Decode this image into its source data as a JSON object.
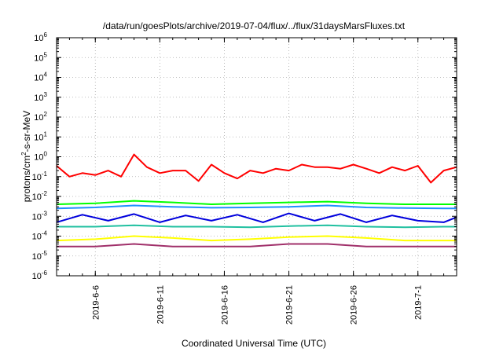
{
  "chart_data": {
    "type": "line",
    "title": "/data/run/goesPlots/archive/2019-07-04/flux/../flux/31daysMarsFluxes.txt",
    "xlabel": "Coordinated Universal Time (UTC)",
    "ylabel": {
      "prefix": "protons/cm",
      "sup": "2",
      "suffix": "-s-sr-MeV"
    },
    "y_scale": "log",
    "ylim_exp": [
      -6,
      6
    ],
    "xlim": [
      "2019-06-03",
      "2019-07-04"
    ],
    "x_ticks": [
      "2019-6-6",
      "2019-6-11",
      "2019-6-16",
      "2019-6-21",
      "2019-6-26",
      "2019-7-1"
    ],
    "x_tick_dates": [
      "2019-06-06",
      "2019-06-11",
      "2019-06-16",
      "2019-06-21",
      "2019-06-26",
      "2019-07-01"
    ],
    "y_tick_exponents": [
      "-6",
      "-5",
      "-4",
      "-3",
      "-2",
      "-1",
      "0",
      "1",
      "2",
      "3",
      "4",
      "5",
      "6"
    ],
    "y_tick_base": "10",
    "grid": true,
    "series": [
      {
        "color": "#ff0000",
        "x": [
          "2019-06-03",
          "2019-06-04",
          "2019-06-05",
          "2019-06-06",
          "2019-06-07",
          "2019-06-08",
          "2019-06-09",
          "2019-06-10",
          "2019-06-11",
          "2019-06-12",
          "2019-06-13",
          "2019-06-14",
          "2019-06-15",
          "2019-06-16",
          "2019-06-17",
          "2019-06-18",
          "2019-06-19",
          "2019-06-20",
          "2019-06-21",
          "2019-06-22",
          "2019-06-23",
          "2019-06-24",
          "2019-06-25",
          "2019-06-26",
          "2019-06-27",
          "2019-06-28",
          "2019-06-29",
          "2019-06-30",
          "2019-07-01",
          "2019-07-02",
          "2019-07-03",
          "2019-07-04"
        ],
        "values": [
          0.35,
          0.1,
          0.15,
          0.12,
          0.2,
          0.1,
          1.3,
          0.3,
          0.15,
          0.2,
          0.2,
          0.06,
          0.4,
          0.15,
          0.08,
          0.2,
          0.15,
          0.25,
          0.2,
          0.4,
          0.3,
          0.3,
          0.25,
          0.4,
          0.25,
          0.15,
          0.3,
          0.2,
          0.35,
          0.05,
          0.2,
          0.3
        ]
      },
      {
        "color": "#00ff00",
        "x": [
          "2019-06-03",
          "2019-06-06",
          "2019-06-09",
          "2019-06-12",
          "2019-06-15",
          "2019-06-18",
          "2019-06-21",
          "2019-06-24",
          "2019-06-27",
          "2019-06-30",
          "2019-07-03",
          "2019-07-04"
        ],
        "values": [
          0.004,
          0.0045,
          0.006,
          0.005,
          0.004,
          0.0045,
          0.005,
          0.0055,
          0.0045,
          0.004,
          0.004,
          0.004
        ]
      },
      {
        "color": "#1e90ff",
        "x": [
          "2019-06-03",
          "2019-06-06",
          "2019-06-09",
          "2019-06-12",
          "2019-06-15",
          "2019-06-18",
          "2019-06-21",
          "2019-06-24",
          "2019-06-27",
          "2019-06-30",
          "2019-07-03",
          "2019-07-04"
        ],
        "values": [
          0.0025,
          0.0028,
          0.0035,
          0.003,
          0.0027,
          0.0028,
          0.003,
          0.0035,
          0.0028,
          0.0026,
          0.0025,
          0.0025
        ]
      },
      {
        "color": "#0000dd",
        "x": [
          "2019-06-03",
          "2019-06-05",
          "2019-06-07",
          "2019-06-09",
          "2019-06-11",
          "2019-06-13",
          "2019-06-15",
          "2019-06-17",
          "2019-06-19",
          "2019-06-21",
          "2019-06-23",
          "2019-06-25",
          "2019-06-27",
          "2019-06-29",
          "2019-07-01",
          "2019-07-03",
          "2019-07-04"
        ],
        "values": [
          0.0005,
          0.0012,
          0.0006,
          0.0013,
          0.0005,
          0.0011,
          0.0006,
          0.0012,
          0.0005,
          0.0014,
          0.0006,
          0.0013,
          0.0005,
          0.0011,
          0.0006,
          0.0005,
          0.0009
        ]
      },
      {
        "color": "#20c0a0",
        "x": [
          "2019-06-03",
          "2019-06-06",
          "2019-06-09",
          "2019-06-12",
          "2019-06-15",
          "2019-06-18",
          "2019-06-21",
          "2019-06-24",
          "2019-06-27",
          "2019-06-30",
          "2019-07-03",
          "2019-07-04"
        ],
        "values": [
          0.0003,
          0.0003,
          0.00035,
          0.0003,
          0.0003,
          0.00028,
          0.00032,
          0.00035,
          0.0003,
          0.00028,
          0.0003,
          0.0003
        ]
      },
      {
        "color": "#ffff00",
        "x": [
          "2019-06-03",
          "2019-06-06",
          "2019-06-09",
          "2019-06-12",
          "2019-06-15",
          "2019-06-18",
          "2019-06-21",
          "2019-06-24",
          "2019-06-27",
          "2019-06-30",
          "2019-07-03",
          "2019-07-04"
        ],
        "values": [
          6e-05,
          7e-05,
          0.0001,
          8e-05,
          6e-05,
          7e-05,
          9e-05,
          0.0001,
          8e-05,
          6e-05,
          6e-05,
          6e-05
        ]
      },
      {
        "color": "#a0306a",
        "x": [
          "2019-06-03",
          "2019-06-06",
          "2019-06-09",
          "2019-06-12",
          "2019-06-15",
          "2019-06-18",
          "2019-06-21",
          "2019-06-24",
          "2019-06-27",
          "2019-06-30",
          "2019-07-03",
          "2019-07-04"
        ],
        "values": [
          3e-05,
          3e-05,
          4e-05,
          3e-05,
          3e-05,
          3e-05,
          4e-05,
          4e-05,
          3e-05,
          3e-05,
          3e-05,
          3e-05
        ]
      }
    ]
  }
}
